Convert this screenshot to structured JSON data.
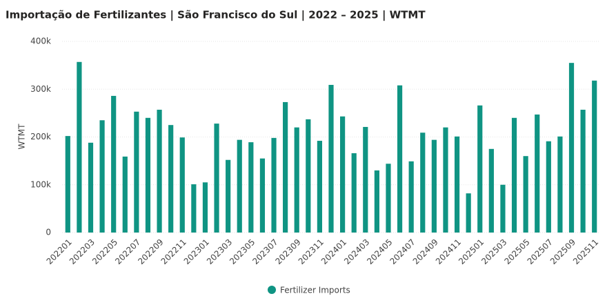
{
  "chart_data": {
    "type": "bar",
    "title": "Importação de Fertilizantes | São Francisco do Sul | 2022 – 2025 | WTMT",
    "y_label": "WTMT",
    "categories": [
      "202201",
      null,
      "202203",
      null,
      "202205",
      null,
      "202207",
      null,
      "202209",
      null,
      "202211",
      null,
      "202301",
      null,
      "202303",
      null,
      "202305",
      null,
      "202307",
      null,
      "202309",
      null,
      "202311",
      null,
      "202401",
      null,
      "202403",
      null,
      "202405",
      null,
      "202407",
      null,
      "202409",
      null,
      "202411",
      null,
      "202501",
      null,
      "202503",
      null,
      "202505",
      null,
      "202507",
      null,
      "202509",
      null,
      "202511"
    ],
    "series": [
      {
        "name": "Fertilizer Imports",
        "color": "#0f9483",
        "values": [
          202000,
          357000,
          188000,
          235000,
          286000,
          159000,
          253000,
          240000,
          257000,
          225000,
          199000,
          101000,
          105000,
          228000,
          152000,
          194000,
          189000,
          155000,
          198000,
          273000,
          220000,
          237000,
          192000,
          309000,
          243000,
          166000,
          221000,
          130000,
          144000,
          308000,
          149000,
          209000,
          194000,
          220000,
          201000,
          82000,
          266000,
          175000,
          100000,
          240000,
          160000,
          247000,
          191000,
          201000,
          355000,
          257000,
          318000
        ]
      }
    ],
    "ylim": [
      0,
      400000
    ],
    "yticks": [
      0,
      {
        "value": 100000,
        "label": "100k"
      },
      {
        "value": 200000,
        "label": "200k"
      },
      {
        "value": 300000,
        "label": "300k"
      },
      {
        "value": 400000,
        "label": "400k"
      }
    ],
    "grid": true
  }
}
